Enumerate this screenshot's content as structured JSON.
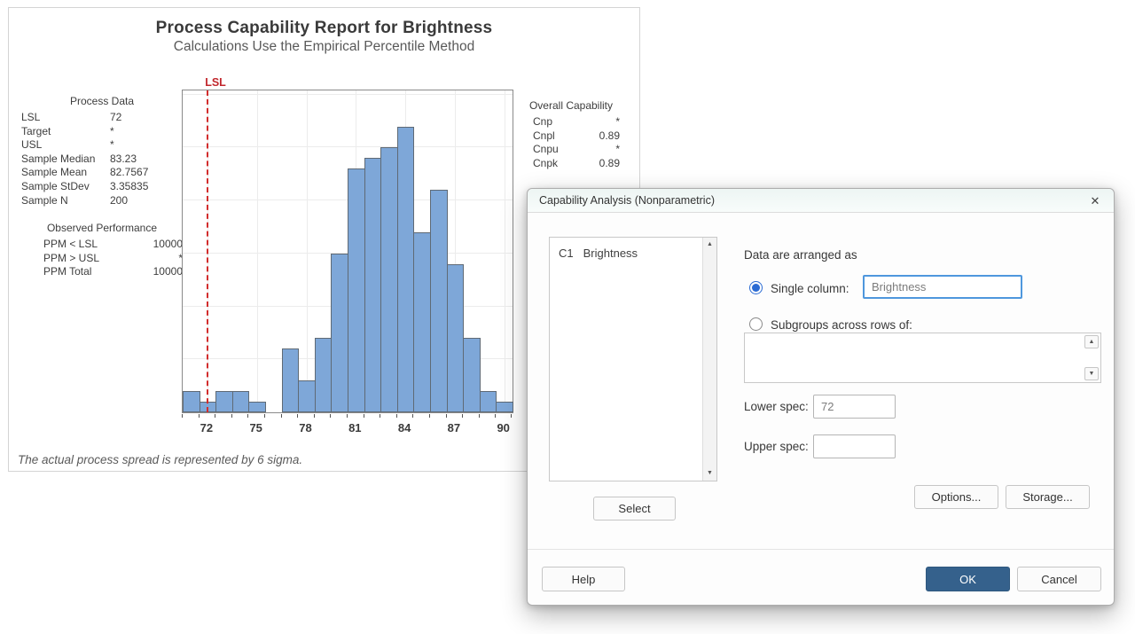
{
  "report": {
    "title": "Process Capability Report for Brightness",
    "subtitle": "Calculations Use the Empirical Percentile Method",
    "footnote": "The actual process spread is represented by 6 sigma.",
    "lsl_label": "LSL",
    "process_data": {
      "title": "Process Data",
      "rows": [
        [
          "LSL",
          "72"
        ],
        [
          "Target",
          "*"
        ],
        [
          "USL",
          "*"
        ],
        [
          "Sample Median",
          "83.23"
        ],
        [
          "Sample Mean",
          "82.7567"
        ],
        [
          "Sample StDev",
          "3.35835"
        ],
        [
          "Sample N",
          "200"
        ]
      ]
    },
    "observed_performance": {
      "title": "Observed Performance",
      "rows": [
        [
          "PPM < LSL",
          "10000"
        ],
        [
          "PPM > USL",
          "*"
        ],
        [
          "PPM Total",
          "10000"
        ]
      ]
    },
    "overall_capability": {
      "title": "Overall Capability",
      "rows": [
        [
          "Cnp",
          "*"
        ],
        [
          "Cnpl",
          "0.89"
        ],
        [
          "Cnpu",
          "*"
        ],
        [
          "Cnpk",
          "0.89"
        ]
      ]
    }
  },
  "chart_data": {
    "type": "bar",
    "title": "Process Capability Report for Brightness",
    "subtitle": "Calculations Use the Empirical Percentile Method",
    "xlabel": "",
    "ylabel": "",
    "x": [
      71,
      72,
      73,
      74,
      75,
      76,
      77,
      78,
      79,
      80,
      81,
      82,
      83,
      84,
      85,
      86,
      87,
      88,
      89,
      90
    ],
    "counts": [
      2,
      1,
      2,
      2,
      1,
      0,
      6,
      3,
      7,
      15,
      23,
      24,
      25,
      27,
      17,
      21,
      14,
      7,
      2,
      1
    ],
    "xticks": [
      72,
      75,
      78,
      81,
      84,
      87,
      90
    ],
    "xlim": [
      70.5,
      90.5
    ],
    "ylim": [
      0,
      30.4
    ],
    "gridline_step": 5,
    "grid": true,
    "lsl": 72,
    "bar_color": "#7ea7d8",
    "bar_border": "#5f6a75",
    "lsl_color": "#d22d2d"
  },
  "dialog": {
    "title": "Capability Analysis (Nonparametric)",
    "listbox_items": [
      {
        "id": "C1",
        "name": "Brightness"
      }
    ],
    "arranged_label": "Data are arranged as",
    "single_column": {
      "label": "Single column:",
      "value": "Brightness",
      "selected": true
    },
    "subgroups": {
      "label": "Subgroups across rows of:",
      "value": "",
      "selected": false
    },
    "lower_spec": {
      "label": "Lower spec:",
      "value": "72"
    },
    "upper_spec": {
      "label": "Upper spec:",
      "value": ""
    },
    "buttons": {
      "select": "Select",
      "options": "Options...",
      "storage": "Storage...",
      "help": "Help",
      "ok": "OK",
      "cancel": "Cancel"
    }
  },
  "icons": {
    "close_icon": "✕",
    "scroll_up_icon": "▲",
    "scroll_down_icon": "▼"
  },
  "colors": {
    "accent_blue": "#35618c",
    "focus_border": "#4f97dd",
    "radio_blue": "#2b6bd3",
    "bar_fill": "#7ea7d8",
    "lsl_red": "#d22d2d"
  }
}
